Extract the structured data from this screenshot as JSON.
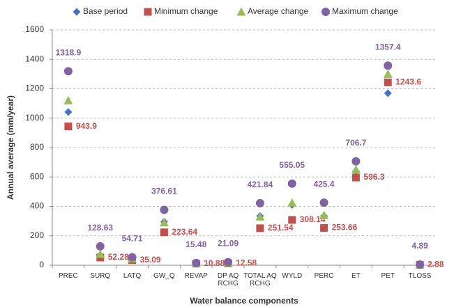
{
  "chart_data": {
    "type": "scatter",
    "x_label": "Water balance components",
    "y_label": "Annual average (mm/year)",
    "categories": [
      "PREC",
      "SURQ",
      "LATQ",
      "GW_Q",
      "REVAP",
      "DP AQ RCHG",
      "TOTAL AQ RCHG",
      "WYLD",
      "PERC",
      "ET",
      "PET",
      "TLOSS"
    ],
    "series": [
      {
        "name": "Base period",
        "color": "#4472c4",
        "marker": "diamond",
        "values": [
          1042,
          70,
          40,
          295,
          10,
          15,
          335,
          410,
          335,
          640,
          1170,
          3
        ]
      },
      {
        "name": "Minimum change",
        "color": "#c0504d",
        "marker": "square",
        "labels": "right",
        "values": [
          943.9,
          52.28,
          35.09,
          223.64,
          10.88,
          12.58,
          251.54,
          308.14,
          253.66,
          596.3,
          1243.6,
          2.88
        ]
      },
      {
        "name": "Average change",
        "color": "#9bbb59",
        "marker": "triangle",
        "values": [
          1120,
          75,
          45,
          290,
          12,
          17,
          330,
          425,
          340,
          650,
          1300,
          4
        ]
      },
      {
        "name": "Maximum change",
        "color": "#8064a2",
        "marker": "circle",
        "labels": "above",
        "values": [
          1318.9,
          128.63,
          54.71,
          376.61,
          15.48,
          21.09,
          421.84,
          555.05,
          425.4,
          706.7,
          1357.4,
          4.89
        ]
      }
    ],
    "ylim": [
      0,
      1600
    ],
    "yticks": [
      0,
      200,
      400,
      600,
      800,
      1000,
      1200,
      1400,
      1600
    ],
    "grid": true
  }
}
